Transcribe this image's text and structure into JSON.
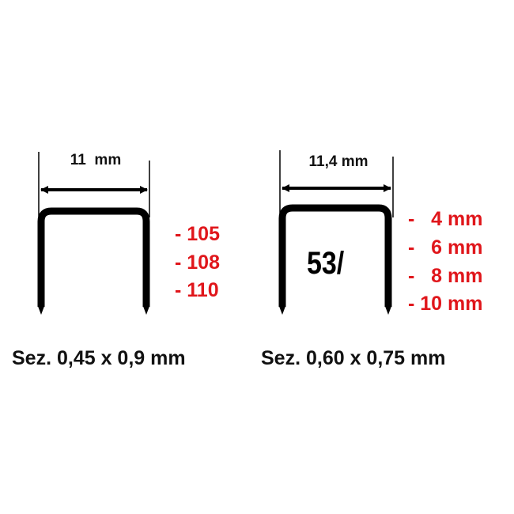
{
  "colors": {
    "staple": "#000000",
    "sizes": "#e0161b",
    "text": "#111111"
  },
  "left": {
    "width_label": "11  mm",
    "sizes": [
      "- 105",
      "- 108",
      "- 110"
    ],
    "section": "Sez. 0,45 x 0,9 mm"
  },
  "right": {
    "width_label": "11,4 mm",
    "model": "53/",
    "sizes": [
      "-   4 mm",
      "-   6 mm",
      "-   8 mm",
      "- 10 mm"
    ],
    "section": "Sez. 0,60 x 0,75 mm"
  }
}
